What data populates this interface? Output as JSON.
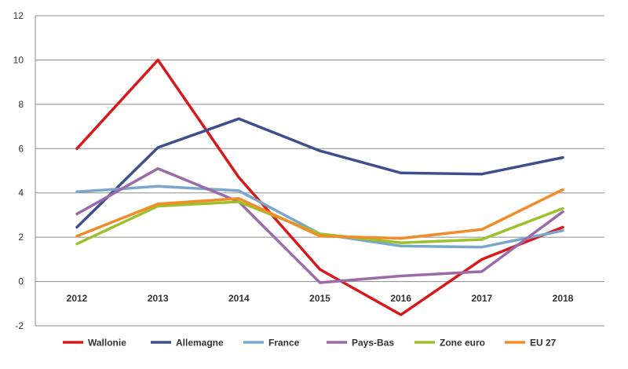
{
  "chart_data": {
    "type": "line",
    "categories": [
      "2012",
      "2013",
      "2014",
      "2015",
      "2016",
      "2017",
      "2018"
    ],
    "ylim": [
      -2,
      12
    ],
    "yticks": [
      "-2",
      "0",
      "2",
      "4",
      "6",
      "8",
      "10",
      "12"
    ],
    "grid": true,
    "legend_position": "bottom",
    "series": [
      {
        "name": "Wallonie",
        "color": "#d7191c",
        "values": [
          6.0,
          10.0,
          4.7,
          0.55,
          -1.5,
          1.0,
          2.45
        ]
      },
      {
        "name": "Allemagne",
        "color": "#3f4f8c",
        "values": [
          2.45,
          6.05,
          7.35,
          5.9,
          4.9,
          4.85,
          5.6
        ]
      },
      {
        "name": "France",
        "color": "#7aa6c9",
        "values": [
          4.05,
          4.3,
          4.1,
          2.15,
          1.6,
          1.55,
          2.3
        ]
      },
      {
        "name": "Pays-Bas",
        "color": "#9b6aa8",
        "values": [
          3.05,
          5.1,
          3.6,
          -0.05,
          0.25,
          0.45,
          3.15
        ]
      },
      {
        "name": "Zone euro",
        "color": "#9dc12a",
        "values": [
          1.7,
          3.4,
          3.6,
          2.15,
          1.75,
          1.9,
          3.3
        ]
      },
      {
        "name": "EU 27",
        "color": "#f28c28",
        "values": [
          2.05,
          3.5,
          3.75,
          2.05,
          1.95,
          2.35,
          4.15
        ]
      }
    ]
  }
}
